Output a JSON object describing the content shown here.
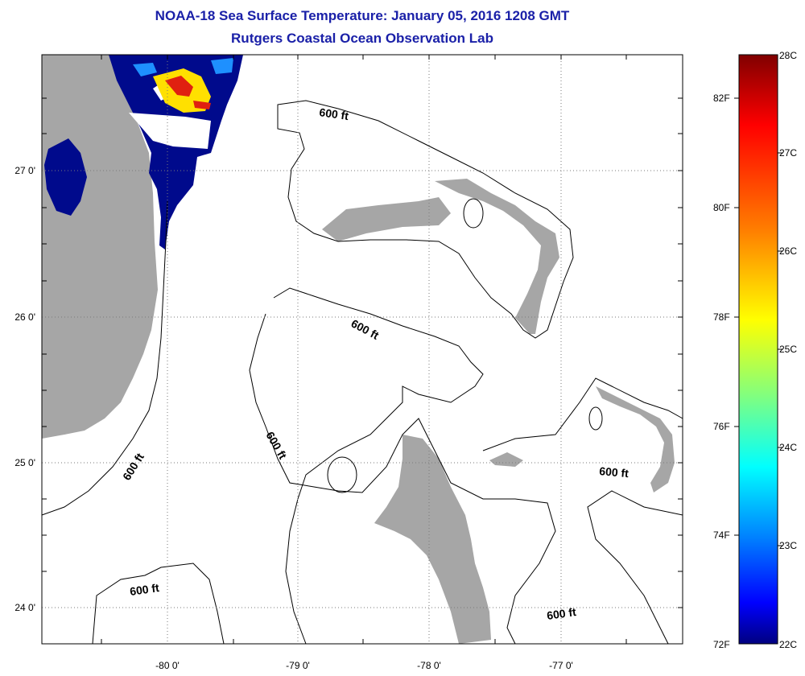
{
  "title_line1": "NOAA-18 Sea Surface Temperature:  January 05, 2016 1208 GMT",
  "title_line2": "Rutgers Coastal Ocean Observation Lab",
  "lat_labels": [
    "27 0'",
    "26 0'",
    "25 0'",
    "24 0'"
  ],
  "lon_labels": [
    "-80 0'",
    "-79 0'",
    "-78 0'",
    "-77 0'"
  ],
  "contour_label": "600 ft",
  "colorbar": {
    "fahrenheit": [
      "82F",
      "80F",
      "78F",
      "76F",
      "74F",
      "72F"
    ],
    "celsius": [
      "28C",
      "27C",
      "26C",
      "25C",
      "24C",
      "23C",
      "22C"
    ],
    "colors": [
      "#800000",
      "#ff0000",
      "#ff8000",
      "#ffff00",
      "#80ff80",
      "#00ffff",
      "#0080ff",
      "#0000ff",
      "#000080"
    ]
  },
  "colors": {
    "land": "#a6a6a6",
    "cold_sst": "#000a8c",
    "title": "#1a20a8"
  }
}
